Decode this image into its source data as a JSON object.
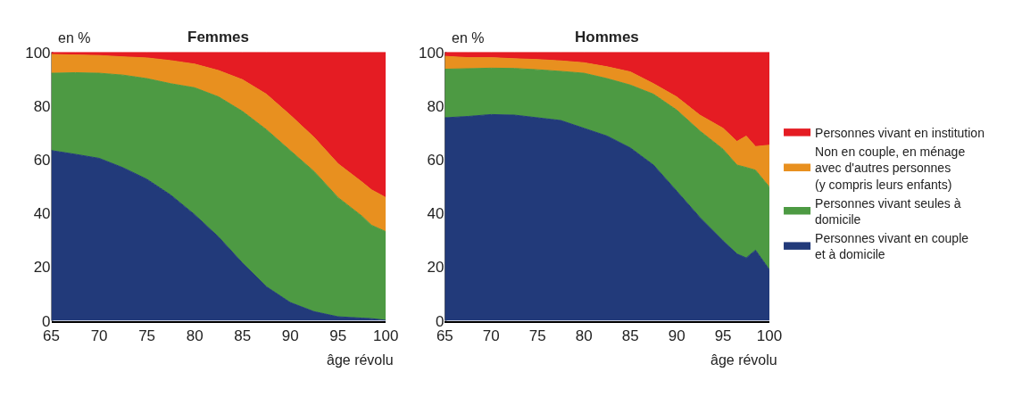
{
  "chart_data": [
    {
      "type": "area",
      "stacked": true,
      "title": "Femmes",
      "ylabel": "en %",
      "xlabel": "âge révolu",
      "x": [
        65,
        67.5,
        70,
        72.5,
        75,
        77.5,
        80,
        82.5,
        85,
        87.5,
        90,
        92.5,
        95,
        97.5,
        98.5,
        100
      ],
      "xlim": [
        65,
        100
      ],
      "xticks": [
        65,
        70,
        75,
        80,
        85,
        90,
        95,
        100
      ],
      "ylim": [
        0,
        100
      ],
      "yticks": [
        0,
        20,
        40,
        60,
        80,
        100
      ],
      "grid": false,
      "series": [
        {
          "color": "#223a7a",
          "values": [
            63.4,
            62,
            60.5,
            57,
            52.7,
            46.8,
            39.5,
            31.2,
            21.5,
            12.7,
            6.8,
            3.4,
            1.5,
            1,
            0.8,
            0.2
          ]
        },
        {
          "color": "#4d9a43",
          "values": [
            28.8,
            30.4,
            31.7,
            34.5,
            37.5,
            41.5,
            47.3,
            52.2,
            56.5,
            58.5,
            56.6,
            52.2,
            44.4,
            38,
            34.8,
            33
          ]
        },
        {
          "color": "#e8901f",
          "values": [
            7,
            6.6,
            6.6,
            6.8,
            7.7,
            8.6,
            8.8,
            9.8,
            11.8,
            13.2,
            13.2,
            12.7,
            12.6,
            12.7,
            13.2,
            12.7
          ]
        },
        {
          "color": "#e51c23",
          "values": [
            0.8,
            1,
            1.2,
            1.7,
            2.1,
            3.1,
            4.4,
            6.8,
            10.2,
            15.6,
            23.4,
            31.7,
            41.5,
            48.3,
            51.2,
            54.1
          ]
        }
      ]
    },
    {
      "type": "area",
      "stacked": true,
      "title": "Hommes",
      "ylabel": "en %",
      "xlabel": "âge révolu",
      "legend": "right",
      "x": [
        65,
        67.5,
        70,
        72.5,
        75,
        77.5,
        80,
        82.5,
        85,
        87.5,
        90,
        92.5,
        95,
        96.5,
        97.5,
        98.5,
        100
      ],
      "xlim": [
        65,
        100
      ],
      "xticks": [
        65,
        70,
        75,
        80,
        85,
        90,
        95,
        100
      ],
      "ylim": [
        0,
        100
      ],
      "yticks": [
        0,
        20,
        40,
        60,
        80,
        100
      ],
      "grid": false,
      "series": [
        {
          "name": "Personnes vivant en couple\net à domicile",
          "color": "#223a7a",
          "values": [
            75.6,
            76.1,
            76.8,
            76.6,
            75.6,
            74.6,
            71.7,
            68.8,
            64.4,
            58,
            48.3,
            38.5,
            29.8,
            24.9,
            23.4,
            26.3,
            19
          ]
        },
        {
          "name": "Personnes vivant seules à\ndomicile",
          "color": "#4d9a43",
          "values": [
            18.1,
            17.8,
            17.3,
            17.4,
            17.9,
            18.3,
            20.5,
            21.4,
            23.4,
            26.4,
            30.2,
            32.2,
            34.1,
            33.1,
            33.7,
            29.8,
            30.8
          ]
        },
        {
          "name": "Non en couple, en ménage\navec d'autres personnes\n(y compris leurs enfants)",
          "color": "#e8901f",
          "values": [
            4.8,
            4.1,
            3.9,
            3.6,
            3.8,
            3.9,
            3.9,
            4.4,
            4.9,
            3.9,
            4.9,
            5.9,
            7.8,
            8.8,
            11.7,
            8.8,
            15.6
          ]
        },
        {
          "name": "Personnes vivant en institution",
          "color": "#e51c23",
          "values": [
            1.5,
            2,
            2,
            2.4,
            2.7,
            3.2,
            3.9,
            5.4,
            7.3,
            11.7,
            16.6,
            23.4,
            28.3,
            33.2,
            31.2,
            35.1,
            34.6
          ]
        }
      ]
    }
  ]
}
